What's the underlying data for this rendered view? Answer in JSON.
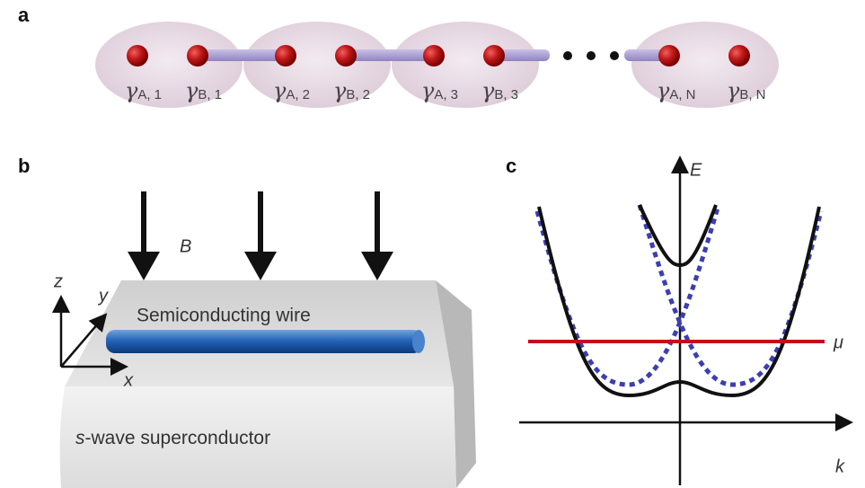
{
  "panels": {
    "a": "a",
    "b": "b",
    "c": "c"
  },
  "chain": {
    "symbol": "γ",
    "subscripts": [
      "A, 1",
      "B, 1",
      "A, 2",
      "B, 2",
      "A, 3",
      "B, 3",
      "A, N",
      "B, N"
    ]
  },
  "wire_figure": {
    "field": "B",
    "axes": {
      "z": "z",
      "y": "y",
      "x": "x"
    },
    "wire": "Semiconducting wire",
    "substrate_prefix": "s",
    "substrate": "-wave superconductor"
  },
  "band_figure": {
    "energy": "E",
    "momentum": "k",
    "chemical_potential": "μ"
  }
}
